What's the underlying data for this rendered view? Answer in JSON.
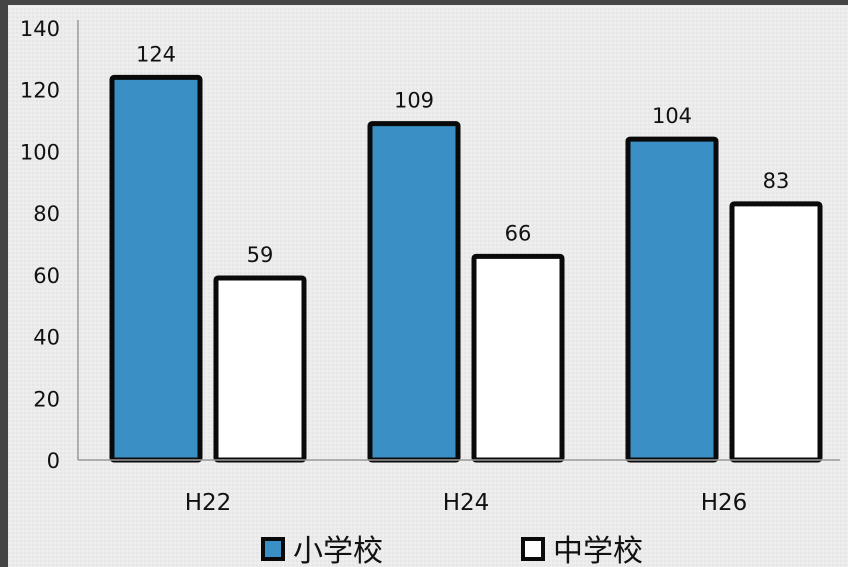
{
  "chart_data": {
    "type": "bar",
    "categories": [
      "H22",
      "H24",
      "H26"
    ],
    "series": [
      {
        "name": "小学校",
        "values": [
          124,
          109,
          104
        ]
      },
      {
        "name": "中学校",
        "values": [
          59,
          66,
          83
        ]
      }
    ],
    "ylim": [
      0,
      140
    ],
    "yticks": [
      0,
      20,
      40,
      60,
      80,
      100,
      120,
      140
    ],
    "data_labels": true,
    "grid": false,
    "legend_position": "bottom-center",
    "colors": {
      "series_fill": [
        "#3a8fc4",
        "#ffffff"
      ],
      "bar_stroke": "#0a0a0a",
      "background": "#ebebeb",
      "border": "#454545"
    }
  }
}
